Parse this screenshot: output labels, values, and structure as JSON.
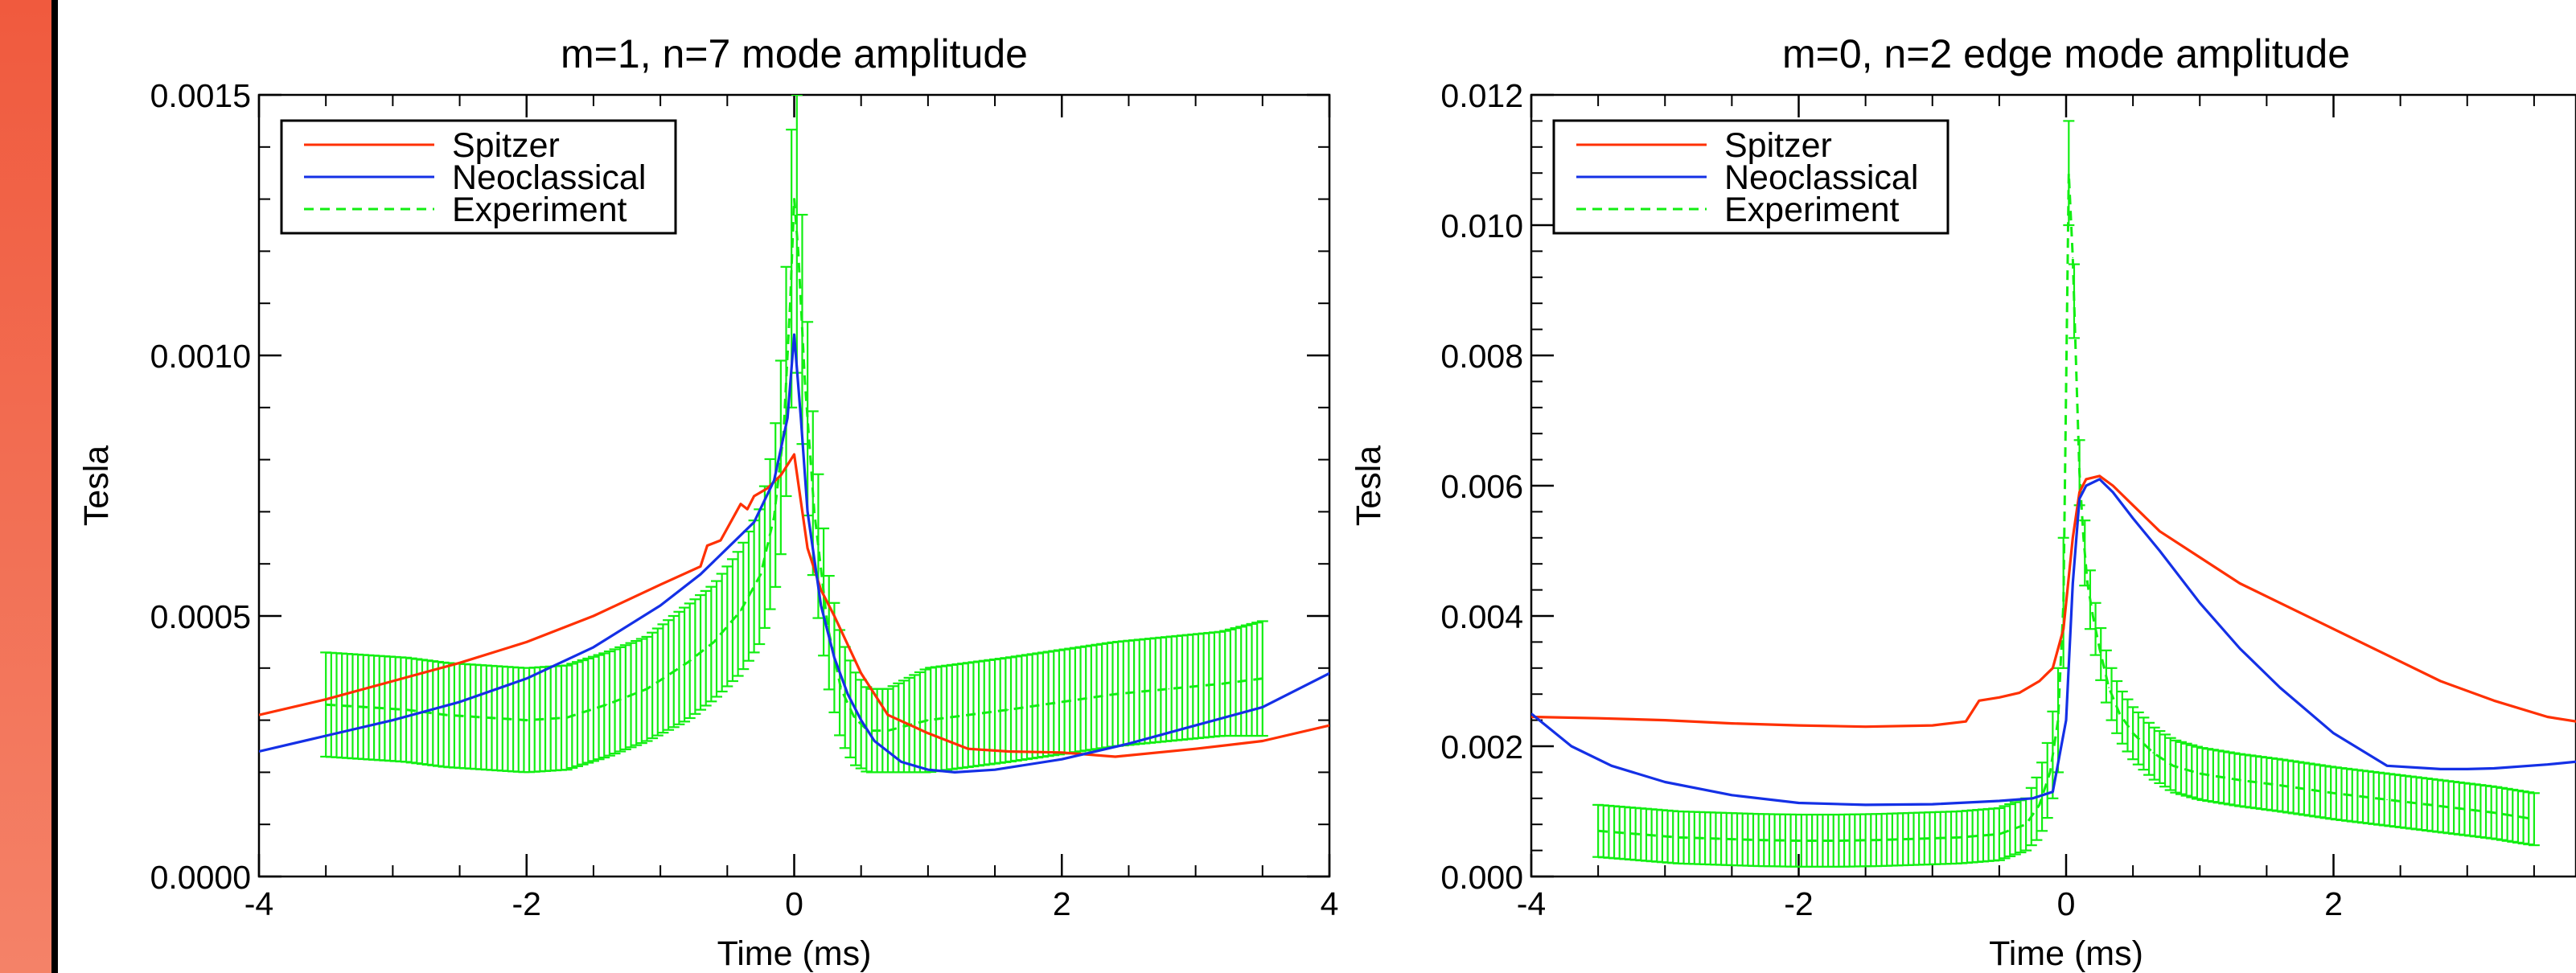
{
  "colors": {
    "accent": "#f05a3e",
    "spitzer": "#ff3000",
    "neoclassical": "#1430e6",
    "experiment": "#12ee12"
  },
  "chart_data": [
    {
      "type": "line",
      "title": "m=1, n=7 mode amplitude",
      "xlabel": "Time (ms)",
      "ylabel": "Tesla",
      "xlim": [
        -4,
        4
      ],
      "ylim": [
        0,
        0.0015
      ],
      "xticks": [
        "-4",
        "-2",
        "0",
        "2",
        "4"
      ],
      "yticks": [
        "0.0000",
        "0.0005",
        "0.0010",
        "0.0015"
      ],
      "legend_position": "top-left",
      "grid": false,
      "series": [
        {
          "name": "Spitzer",
          "style": "solid",
          "x": [
            -4,
            -3.5,
            -3,
            -2.5,
            -2,
            -1.5,
            -1,
            -0.7,
            -0.65,
            -0.55,
            -0.4,
            -0.35,
            -0.3,
            -0.2,
            -0.1,
            0,
            0.05,
            0.1,
            0.2,
            0.3,
            0.5,
            0.7,
            1.0,
            1.3,
            1.6,
            2.0,
            2.4,
            3.0,
            3.5,
            4.0
          ],
          "y": [
            0.00031,
            0.00034,
            0.000375,
            0.00041,
            0.00045,
            0.0005,
            0.00056,
            0.000595,
            0.000635,
            0.000645,
            0.000715,
            0.000705,
            0.00073,
            0.000745,
            0.00077,
            0.00081,
            0.00072,
            0.00063,
            0.00055,
            0.0005,
            0.00039,
            0.00031,
            0.000275,
            0.000245,
            0.00024,
            0.000238,
            0.00023,
            0.000245,
            0.00026,
            0.00029
          ]
        },
        {
          "name": "Neoclassical",
          "style": "solid",
          "x": [
            -4,
            -3.5,
            -3,
            -2.5,
            -2,
            -1.5,
            -1,
            -0.7,
            -0.5,
            -0.3,
            -0.15,
            -0.05,
            0,
            0.05,
            0.1,
            0.2,
            0.3,
            0.4,
            0.5,
            0.6,
            0.8,
            1.0,
            1.2,
            1.5,
            2.0,
            2.5,
            3.0,
            3.5,
            4.0
          ],
          "y": [
            0.00024,
            0.00027,
            0.0003,
            0.000335,
            0.00038,
            0.00044,
            0.00052,
            0.00058,
            0.00063,
            0.00068,
            0.00076,
            0.00088,
            0.00104,
            0.00088,
            0.0007,
            0.00052,
            0.00042,
            0.00035,
            0.0003,
            0.00026,
            0.00022,
            0.000205,
            0.0002,
            0.000205,
            0.000225,
            0.000255,
            0.00029,
            0.000325,
            0.00039
          ]
        },
        {
          "name": "Experiment",
          "style": "dashed",
          "error_bars": true,
          "x": [
            -3.5,
            -3.2,
            -2.9,
            -2.6,
            -2.3,
            -2.0,
            -1.7,
            -1.4,
            -1.1,
            -0.8,
            -0.6,
            -0.4,
            -0.25,
            -0.15,
            -0.08,
            -0.03,
            0,
            0.03,
            0.08,
            0.15,
            0.25,
            0.35,
            0.45,
            0.55,
            0.7,
            0.85,
            1.0,
            1.3,
            1.6,
            2.0,
            2.4,
            2.8,
            3.2,
            3.5
          ],
          "y": [
            0.00033,
            0.000325,
            0.00032,
            0.00031,
            0.000305,
            0.0003,
            0.000305,
            0.00033,
            0.00036,
            0.00041,
            0.00045,
            0.00051,
            0.00058,
            0.00069,
            0.00085,
            0.0011,
            0.0013,
            0.0012,
            0.00095,
            0.0007,
            0.00048,
            0.00036,
            0.000305,
            0.00028,
            0.00028,
            0.00029,
            0.0003,
            0.00031,
            0.00032,
            0.000335,
            0.00035,
            0.00036,
            0.00037,
            0.00038
          ],
          "error": [
            0.0001,
            0.0001,
            0.0001,
            0.0001,
            0.0001,
            0.0001,
            0.0001,
            0.0001,
            0.0001,
            0.00011,
            0.00011,
            0.00012,
            0.00013,
            0.00015,
            0.0002,
            0.00025,
            0.0003,
            0.00025,
            0.0002,
            0.00015,
            0.00011,
            0.0001,
            9e-05,
            8e-05,
            8e-05,
            9e-05,
            0.0001,
            0.0001,
            0.0001,
            0.0001,
            0.0001,
            0.0001,
            0.0001,
            0.00011
          ]
        }
      ]
    },
    {
      "type": "line",
      "title": "m=0, n=2 edge mode amplitude",
      "xlabel": "Time (ms)",
      "ylabel": "Tesla",
      "xlim": [
        -4,
        4
      ],
      "ylim": [
        0,
        0.012
      ],
      "xticks": [
        "-4",
        "-2",
        "0",
        "2"
      ],
      "yticks": [
        "0.000",
        "0.002",
        "0.004",
        "0.006",
        "0.008",
        "0.010",
        "0.012"
      ],
      "legend_position": "top-left",
      "grid": false,
      "series": [
        {
          "name": "Spitzer",
          "style": "solid",
          "x": [
            -4,
            -3.5,
            -3,
            -2.5,
            -2,
            -1.5,
            -1,
            -0.75,
            -0.65,
            -0.5,
            -0.35,
            -0.2,
            -0.1,
            -0.02,
            0.05,
            0.1,
            0.15,
            0.25,
            0.35,
            0.5,
            0.7,
            1.0,
            1.3,
            1.6,
            2.0,
            2.4,
            2.8,
            3.2,
            3.6,
            4.0
          ],
          "y": [
            0.00245,
            0.00243,
            0.0024,
            0.00235,
            0.00232,
            0.0023,
            0.00232,
            0.00238,
            0.0027,
            0.00275,
            0.00282,
            0.003,
            0.0032,
            0.0038,
            0.0052,
            0.0059,
            0.0061,
            0.00615,
            0.006,
            0.0057,
            0.0053,
            0.0049,
            0.0045,
            0.0042,
            0.0038,
            0.0034,
            0.003,
            0.0027,
            0.00245,
            0.00232
          ]
        },
        {
          "name": "Neoclassical",
          "style": "solid",
          "x": [
            -4,
            -3.7,
            -3.4,
            -3,
            -2.5,
            -2,
            -1.5,
            -1,
            -0.5,
            -0.25,
            -0.1,
            0,
            0.05,
            0.1,
            0.15,
            0.25,
            0.35,
            0.5,
            0.7,
            1.0,
            1.3,
            1.6,
            2.0,
            2.4,
            2.8,
            3.0,
            3.2,
            3.6,
            4.0
          ],
          "y": [
            0.0025,
            0.002,
            0.0017,
            0.00145,
            0.00125,
            0.00113,
            0.0011,
            0.00111,
            0.00116,
            0.0012,
            0.0013,
            0.0024,
            0.0045,
            0.0058,
            0.006,
            0.0061,
            0.0059,
            0.0055,
            0.005,
            0.0042,
            0.0035,
            0.0029,
            0.0022,
            0.0017,
            0.00165,
            0.00165,
            0.00166,
            0.00172,
            0.0018
          ]
        },
        {
          "name": "Experiment",
          "style": "dashed",
          "error_bars": true,
          "x": [
            -3.5,
            -3.2,
            -2.9,
            -2.6,
            -2.3,
            -2.0,
            -1.7,
            -1.4,
            -1.1,
            -0.8,
            -0.5,
            -0.3,
            -0.2,
            -0.12,
            -0.06,
            -0.02,
            0,
            0.02,
            0.05,
            0.08,
            0.1,
            0.13,
            0.16,
            0.2,
            0.25,
            0.32,
            0.4,
            0.5,
            0.65,
            0.8,
            1.0,
            1.3,
            1.6,
            2.0,
            2.4,
            2.8,
            3.2,
            3.5
          ],
          "y": [
            0.0007,
            0.00065,
            0.0006,
            0.00058,
            0.00056,
            0.00055,
            0.00055,
            0.00056,
            0.00058,
            0.0006,
            0.00065,
            0.0008,
            0.0011,
            0.0016,
            0.0024,
            0.0042,
            0.0075,
            0.0108,
            0.0095,
            0.0075,
            0.0062,
            0.0052,
            0.0045,
            0.004,
            0.0035,
            0.0029,
            0.0025,
            0.0022,
            0.0019,
            0.0017,
            0.00158,
            0.00148,
            0.0014,
            0.00128,
            0.00118,
            0.00108,
            0.00098,
            0.00088
          ],
          "error": [
            0.0004,
            0.0004,
            0.0004,
            0.0004,
            0.0004,
            0.0004,
            0.0004,
            0.0004,
            0.0004,
            0.0004,
            0.0004,
            0.0004,
            0.0005,
            0.0006,
            0.0008,
            0.001,
            0.0012,
            0.0008,
            0.0006,
            0.0005,
            0.0005,
            0.0005,
            0.0005,
            0.0004,
            0.0004,
            0.0004,
            0.0004,
            0.0004,
            0.0004,
            0.0004,
            0.0004,
            0.0004,
            0.0004,
            0.0004,
            0.0004,
            0.0004,
            0.0004,
            0.0004
          ]
        }
      ]
    }
  ]
}
